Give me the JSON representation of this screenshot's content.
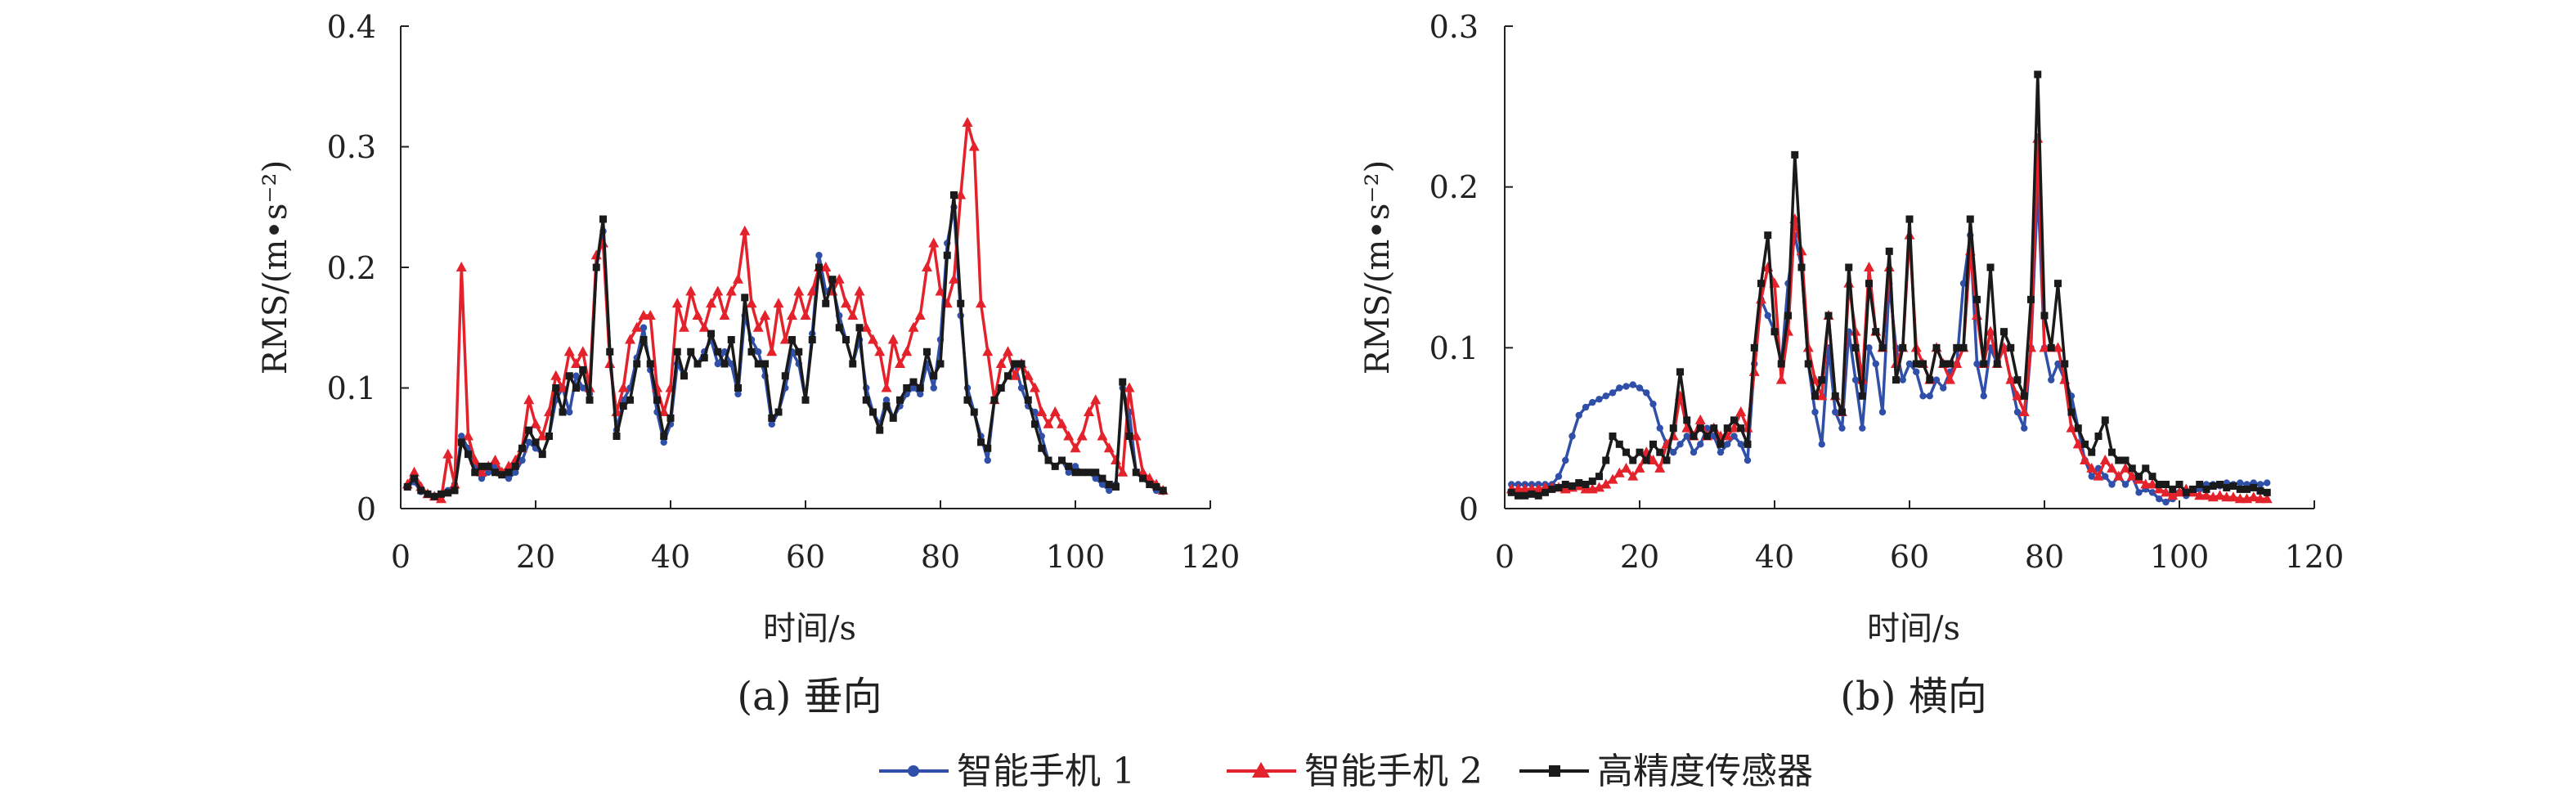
{
  "chart_data": [
    {
      "type": "line",
      "caption": "(a) 垂向",
      "xlabel": "时间/s",
      "ylabel": "RMS/(m•s⁻²)",
      "xlim": [
        0,
        120
      ],
      "ylim": [
        0,
        0.4
      ],
      "xticks": [
        0,
        20,
        40,
        60,
        80,
        100,
        120
      ],
      "xtick_labels": [
        "0",
        "20",
        "40",
        "60",
        "80",
        "100",
        "120"
      ],
      "yticks": [
        0,
        0.1,
        0.2,
        0.3,
        0.4
      ],
      "ytick_labels": [
        "0",
        "0.1",
        "0.2",
        "0.3",
        "0.4"
      ],
      "grid": false,
      "x_range": [
        1,
        113
      ],
      "series": [
        {
          "name": "智能手机 1",
          "color": "#2f4fa8",
          "marker": "circle",
          "values": [
            0.018,
            0.022,
            0.014,
            0.012,
            0.01,
            0.012,
            0.015,
            0.02,
            0.06,
            0.05,
            0.035,
            0.025,
            0.03,
            0.035,
            0.03,
            0.025,
            0.03,
            0.04,
            0.055,
            0.05,
            0.045,
            0.06,
            0.09,
            0.1,
            0.08,
            0.11,
            0.1,
            0.095,
            0.2,
            0.23,
            0.13,
            0.065,
            0.09,
            0.1,
            0.125,
            0.15,
            0.115,
            0.08,
            0.055,
            0.07,
            0.12,
            0.11,
            0.13,
            0.12,
            0.13,
            0.14,
            0.12,
            0.13,
            0.12,
            0.095,
            0.16,
            0.14,
            0.13,
            0.11,
            0.07,
            0.08,
            0.1,
            0.13,
            0.12,
            0.09,
            0.145,
            0.21,
            0.18,
            0.185,
            0.16,
            0.14,
            0.12,
            0.14,
            0.1,
            0.08,
            0.07,
            0.09,
            0.075,
            0.085,
            0.095,
            0.1,
            0.095,
            0.12,
            0.1,
            0.14,
            0.22,
            0.25,
            0.16,
            0.1,
            0.08,
            0.06,
            0.04,
            0.09,
            0.1,
            0.11,
            0.12,
            0.1,
            0.085,
            0.08,
            0.06,
            0.04,
            0.035,
            0.04,
            0.03,
            0.035,
            0.03,
            0.03,
            0.025,
            0.02,
            0.015,
            0.02,
            0.1,
            0.08,
            0.03,
            0.025,
            0.02,
            0.015,
            0.014
          ]
        },
        {
          "name": "智能手机 2",
          "color": "#e3222b",
          "marker": "triangle",
          "values": [
            0.02,
            0.03,
            0.018,
            0.012,
            0.01,
            0.008,
            0.045,
            0.02,
            0.2,
            0.06,
            0.04,
            0.03,
            0.035,
            0.04,
            0.03,
            0.035,
            0.04,
            0.05,
            0.09,
            0.07,
            0.06,
            0.08,
            0.11,
            0.1,
            0.13,
            0.12,
            0.13,
            0.1,
            0.21,
            0.22,
            0.12,
            0.08,
            0.1,
            0.14,
            0.15,
            0.16,
            0.16,
            0.1,
            0.08,
            0.1,
            0.17,
            0.15,
            0.18,
            0.16,
            0.15,
            0.17,
            0.18,
            0.16,
            0.18,
            0.19,
            0.23,
            0.17,
            0.15,
            0.16,
            0.13,
            0.17,
            0.14,
            0.16,
            0.18,
            0.16,
            0.18,
            0.2,
            0.2,
            0.18,
            0.19,
            0.17,
            0.16,
            0.18,
            0.15,
            0.14,
            0.13,
            0.1,
            0.14,
            0.12,
            0.13,
            0.15,
            0.16,
            0.2,
            0.22,
            0.18,
            0.17,
            0.19,
            0.26,
            0.32,
            0.3,
            0.17,
            0.13,
            0.09,
            0.12,
            0.13,
            0.11,
            0.12,
            0.11,
            0.1,
            0.08,
            0.07,
            0.08,
            0.07,
            0.06,
            0.05,
            0.06,
            0.08,
            0.09,
            0.06,
            0.05,
            0.04,
            0.03,
            0.1,
            0.06,
            0.03,
            0.025,
            0.02,
            0.015
          ]
        },
        {
          "name": "高精度传感器",
          "color": "#1a1a1a",
          "marker": "square",
          "values": [
            0.018,
            0.025,
            0.015,
            0.012,
            0.01,
            0.012,
            0.013,
            0.015,
            0.055,
            0.045,
            0.03,
            0.035,
            0.035,
            0.03,
            0.028,
            0.03,
            0.035,
            0.05,
            0.065,
            0.055,
            0.045,
            0.06,
            0.1,
            0.08,
            0.11,
            0.1,
            0.115,
            0.09,
            0.2,
            0.24,
            0.13,
            0.06,
            0.085,
            0.09,
            0.12,
            0.14,
            0.12,
            0.09,
            0.06,
            0.075,
            0.13,
            0.11,
            0.13,
            0.12,
            0.125,
            0.145,
            0.13,
            0.12,
            0.14,
            0.1,
            0.175,
            0.13,
            0.12,
            0.12,
            0.075,
            0.08,
            0.11,
            0.14,
            0.13,
            0.09,
            0.14,
            0.2,
            0.17,
            0.19,
            0.15,
            0.14,
            0.12,
            0.15,
            0.09,
            0.08,
            0.065,
            0.085,
            0.075,
            0.09,
            0.1,
            0.105,
            0.1,
            0.13,
            0.11,
            0.12,
            0.21,
            0.26,
            0.17,
            0.09,
            0.08,
            0.055,
            0.05,
            0.09,
            0.1,
            0.11,
            0.12,
            0.12,
            0.09,
            0.07,
            0.05,
            0.04,
            0.035,
            0.04,
            0.035,
            0.03,
            0.03,
            0.03,
            0.03,
            0.025,
            0.02,
            0.018,
            0.105,
            0.06,
            0.03,
            0.025,
            0.02,
            0.018,
            0.015
          ]
        }
      ]
    },
    {
      "type": "line",
      "caption": "(b) 横向",
      "xlabel": "时间/s",
      "ylabel": "RMS/(m•s⁻²)",
      "xlim": [
        0,
        120
      ],
      "ylim": [
        0,
        0.3
      ],
      "xticks": [
        0,
        20,
        40,
        60,
        80,
        100,
        120
      ],
      "xtick_labels": [
        "0",
        "20",
        "40",
        "60",
        "80",
        "100",
        "120"
      ],
      "yticks": [
        0,
        0.1,
        0.2,
        0.3
      ],
      "ytick_labels": [
        "0",
        "0.1",
        "0.2",
        "0.3"
      ],
      "grid": false,
      "x_range": [
        1,
        113
      ],
      "series": [
        {
          "name": "智能手机 1",
          "color": "#2f4fa8",
          "marker": "circle",
          "values": [
            0.015,
            0.015,
            0.015,
            0.015,
            0.015,
            0.015,
            0.015,
            0.02,
            0.03,
            0.045,
            0.058,
            0.063,
            0.066,
            0.068,
            0.07,
            0.072,
            0.075,
            0.076,
            0.077,
            0.075,
            0.072,
            0.065,
            0.05,
            0.04,
            0.035,
            0.04,
            0.045,
            0.035,
            0.04,
            0.05,
            0.045,
            0.035,
            0.04,
            0.045,
            0.04,
            0.03,
            0.09,
            0.13,
            0.12,
            0.11,
            0.09,
            0.14,
            0.17,
            0.15,
            0.09,
            0.06,
            0.04,
            0.1,
            0.06,
            0.05,
            0.11,
            0.08,
            0.05,
            0.1,
            0.09,
            0.06,
            0.14,
            0.1,
            0.08,
            0.09,
            0.085,
            0.07,
            0.07,
            0.08,
            0.075,
            0.085,
            0.09,
            0.14,
            0.17,
            0.09,
            0.07,
            0.1,
            0.09,
            0.1,
            0.08,
            0.06,
            0.05,
            0.1,
            0.2,
            0.1,
            0.08,
            0.09,
            0.08,
            0.07,
            0.05,
            0.03,
            0.02,
            0.025,
            0.02,
            0.015,
            0.02,
            0.015,
            0.02,
            0.01,
            0.012,
            0.01,
            0.006,
            0.004,
            0.006,
            0.01,
            0.008,
            0.01,
            0.012,
            0.015,
            0.015,
            0.014,
            0.016,
            0.015,
            0.016,
            0.015,
            0.016,
            0.015,
            0.016
          ]
        },
        {
          "name": "智能手机 2",
          "color": "#e3222b",
          "marker": "triangle",
          "values": [
            0.012,
            0.012,
            0.012,
            0.012,
            0.012,
            0.013,
            0.013,
            0.013,
            0.012,
            0.013,
            0.014,
            0.012,
            0.012,
            0.013,
            0.015,
            0.018,
            0.022,
            0.025,
            0.02,
            0.025,
            0.035,
            0.03,
            0.025,
            0.04,
            0.045,
            0.07,
            0.05,
            0.045,
            0.055,
            0.045,
            0.05,
            0.045,
            0.045,
            0.05,
            0.06,
            0.05,
            0.085,
            0.13,
            0.15,
            0.14,
            0.08,
            0.11,
            0.18,
            0.16,
            0.1,
            0.08,
            0.07,
            0.12,
            0.07,
            0.06,
            0.14,
            0.11,
            0.08,
            0.15,
            0.11,
            0.1,
            0.15,
            0.09,
            0.1,
            0.17,
            0.1,
            0.09,
            0.08,
            0.1,
            0.09,
            0.08,
            0.09,
            0.1,
            0.16,
            0.12,
            0.09,
            0.11,
            0.09,
            0.1,
            0.08,
            0.07,
            0.06,
            0.1,
            0.23,
            0.1,
            0.1,
            0.1,
            0.08,
            0.05,
            0.04,
            0.03,
            0.025,
            0.02,
            0.03,
            0.025,
            0.02,
            0.025,
            0.02,
            0.018,
            0.015,
            0.015,
            0.012,
            0.01,
            0.008,
            0.01,
            0.012,
            0.01,
            0.008,
            0.008,
            0.007,
            0.008,
            0.007,
            0.007,
            0.006,
            0.006,
            0.007,
            0.006,
            0.006
          ]
        },
        {
          "name": "高精度传感器",
          "color": "#1a1a1a",
          "marker": "square",
          "values": [
            0.01,
            0.008,
            0.008,
            0.009,
            0.008,
            0.01,
            0.012,
            0.013,
            0.015,
            0.014,
            0.016,
            0.015,
            0.017,
            0.02,
            0.03,
            0.045,
            0.04,
            0.035,
            0.03,
            0.035,
            0.03,
            0.04,
            0.035,
            0.03,
            0.05,
            0.085,
            0.055,
            0.045,
            0.05,
            0.045,
            0.05,
            0.04,
            0.05,
            0.055,
            0.05,
            0.04,
            0.1,
            0.14,
            0.17,
            0.11,
            0.09,
            0.12,
            0.22,
            0.15,
            0.09,
            0.07,
            0.08,
            0.12,
            0.07,
            0.06,
            0.15,
            0.1,
            0.07,
            0.14,
            0.11,
            0.1,
            0.16,
            0.08,
            0.1,
            0.18,
            0.09,
            0.09,
            0.08,
            0.1,
            0.09,
            0.09,
            0.1,
            0.1,
            0.18,
            0.13,
            0.09,
            0.15,
            0.09,
            0.11,
            0.1,
            0.08,
            0.07,
            0.13,
            0.27,
            0.12,
            0.1,
            0.14,
            0.09,
            0.06,
            0.05,
            0.04,
            0.035,
            0.045,
            0.055,
            0.035,
            0.03,
            0.03,
            0.025,
            0.02,
            0.025,
            0.02,
            0.015,
            0.015,
            0.012,
            0.015,
            0.01,
            0.012,
            0.015,
            0.012,
            0.014,
            0.015,
            0.013,
            0.014,
            0.012,
            0.012,
            0.013,
            0.011,
            0.01
          ]
        }
      ]
    }
  ],
  "legend": {
    "placement": "bottom-center",
    "items": [
      {
        "label": "智能手机 1",
        "color": "#2f4fa8",
        "marker": "circle"
      },
      {
        "label": "智能手机 2",
        "color": "#e3222b",
        "marker": "triangle"
      },
      {
        "label": "高精度传感器",
        "color": "#1a1a1a",
        "marker": "square"
      }
    ]
  }
}
